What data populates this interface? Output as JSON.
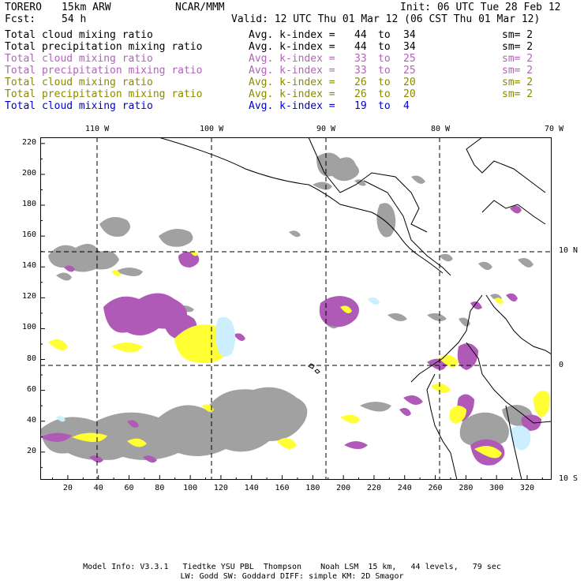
{
  "header": {
    "model": "TORERO",
    "resolution": "15km ARW",
    "org": "NCAR/MMM",
    "init": "Init: 06 UTC Tue 28 Feb 12",
    "fcst_label": "Fcst:",
    "fcst_value": "54 h",
    "valid": "Valid: 12 UTC Thu 01 Mar 12 (06 CST Thu 01 Mar 12)"
  },
  "legend": [
    {
      "field": "Total cloud mixing ratio",
      "kindex": "Avg. k-index =",
      "hi": "44",
      "to": "to",
      "lo": "34",
      "sm": "sm= 2",
      "color": "#000000"
    },
    {
      "field": "Total precipitation mixing ratio",
      "kindex": "Avg. k-index =",
      "hi": "44",
      "to": "to",
      "lo": "34",
      "sm": "sm= 2",
      "color": "#000000"
    },
    {
      "field": "Total cloud mixing ratio",
      "kindex": "Avg. k-index =",
      "hi": "33",
      "to": "to",
      "lo": "25",
      "sm": "sm= 2",
      "color": "#b064b8"
    },
    {
      "field": "Total precipitation mixing ratio",
      "kindex": "Avg. k-index =",
      "hi": "33",
      "to": "to",
      "lo": "25",
      "sm": "sm= 2",
      "color": "#b064b8"
    },
    {
      "field": "Total cloud mixing ratio",
      "kindex": "Avg. k-index =",
      "hi": "26",
      "to": "to",
      "lo": "20",
      "sm": "sm= 2",
      "color": "#8a8a00"
    },
    {
      "field": "Total precipitation mixing ratio",
      "kindex": "Avg. k-index =",
      "hi": "26",
      "to": "to",
      "lo": "20",
      "sm": "sm= 2",
      "color": "#8a8a00"
    },
    {
      "field": "Total cloud mixing ratio",
      "kindex": "Avg. k-index =",
      "hi": "19",
      "to": "to",
      "lo": "4",
      "sm": "",
      "color": "#0000cc"
    }
  ],
  "top_axis": [
    "110 W",
    "100 W",
    "90 W",
    "80 W",
    "70 W"
  ],
  "right_axis": [
    "10 N",
    "0",
    "10 S"
  ],
  "y_ticks": [
    "220",
    "200",
    "180",
    "160",
    "140",
    "120",
    "100",
    "80",
    "60",
    "40",
    "20"
  ],
  "x_ticks": [
    "20",
    "40",
    "60",
    "80",
    "100",
    "120",
    "140",
    "160",
    "180",
    "200",
    "220",
    "240",
    "260",
    "280",
    "300",
    "320"
  ],
  "footer": {
    "line1": "Model Info: V3.3.1   Tiedtke YSU PBL  Thompson    Noah LSM  15 km,   44 levels,   79 sec",
    "line2": "LW: Godd SW: Goddard DIFF: simple KM: 2D Smagor"
  },
  "colors": {
    "gray_cloud": "#9a9a9a",
    "purple": "#b05ab8",
    "yellow": "#ffff33",
    "light_blue": "#cceeff"
  }
}
